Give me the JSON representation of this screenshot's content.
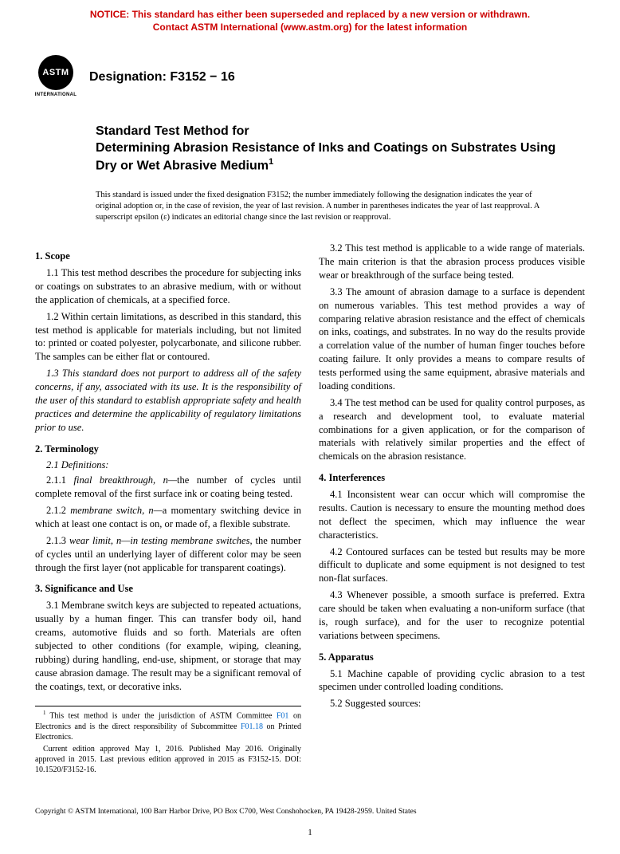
{
  "notice": {
    "line1": "NOTICE: This standard has either been superseded and replaced by a new version or withdrawn.",
    "line2": "Contact ASTM International (www.astm.org) for the latest information",
    "color": "#cc0000"
  },
  "logo": {
    "acronym": "ASTM",
    "subtext": "INTERNATIONAL"
  },
  "designation": {
    "label": "Designation: F3152 − 16"
  },
  "title": {
    "prefix": "Standard Test Method for",
    "main": "Determining Abrasion Resistance of Inks and Coatings on Substrates Using Dry or Wet Abrasive Medium",
    "superscript": "1"
  },
  "issuance_note": "This standard is issued under the fixed designation F3152; the number immediately following the designation indicates the year of original adoption or, in the case of revision, the year of last revision. A number in parentheses indicates the year of last reapproval. A superscript epsilon (ε) indicates an editorial change since the last revision or reapproval.",
  "sections": {
    "s1": {
      "head": "1. Scope",
      "p1": "1.1 This test method describes the procedure for subjecting inks or coatings on substrates to an abrasive medium, with or without the application of chemicals, at a specified force.",
      "p2": "1.2 Within certain limitations, as described in this standard, this test method is applicable for materials including, but not limited to: printed or coated polyester, polycarbonate, and silicone rubber. The samples can be either flat or contoured.",
      "p3": "1.3 This standard does not purport to address all of the safety concerns, if any, associated with its use. It is the responsibility of the user of this standard to establish appropriate safety and health practices and determine the applicability of regulatory limitations prior to use."
    },
    "s2": {
      "head": "2. Terminology",
      "sub": "2.1 Definitions:",
      "p1a": "2.1.1 ",
      "p1term": "final breakthrough, n—",
      "p1b": "the number of cycles until complete removal of the first surface ink or coating being tested.",
      "p2a": "2.1.2 ",
      "p2term": "membrane switch, n—",
      "p2b": "a momentary switching device in which at least one contact is on, or made of, a flexible substrate.",
      "p3a": "2.1.3 ",
      "p3term": "wear limit, n—in testing membrane switches",
      "p3b": ", the number of cycles until an underlying layer of different color may be seen through the first layer (not applicable for transparent coatings)."
    },
    "s3": {
      "head": "3. Significance and Use",
      "p1": "3.1 Membrane switch keys are subjected to repeated actuations, usually by a human finger. This can transfer body oil, hand creams, automotive fluids and so forth. Materials are often subjected to other conditions (for example, wiping, cleaning, rubbing) during handling, end-use, shipment, or storage that may cause abrasion damage. The result may be a significant removal of the coatings, text, or decorative inks.",
      "p2": "3.2 This test method is applicable to a wide range of materials. The main criterion is that the abrasion process produces visible wear or breakthrough of the surface being tested.",
      "p3": "3.3 The amount of abrasion damage to a surface is dependent on numerous variables. This test method provides a way of comparing relative abrasion resistance and the effect of chemicals on inks, coatings, and substrates. In no way do the results provide a correlation value of the number of human finger touches before coating failure. It only provides a means to compare results of tests performed using the same equipment, abrasive materials and loading conditions.",
      "p4": "3.4 The test method can be used for quality control purposes, as a research and development tool, to evaluate material combinations for a given application, or for the comparison of materials with relatively similar properties and the effect of chemicals on the abrasion resistance."
    },
    "s4": {
      "head": "4. Interferences",
      "p1": "4.1 Inconsistent wear can occur which will compromise the results. Caution is necessary to ensure the mounting method does not deflect the specimen, which may influence the wear characteristics.",
      "p2": "4.2 Contoured surfaces can be tested but results may be more difficult to duplicate and some equipment is not designed to test non-flat surfaces.",
      "p3": "4.3 Whenever possible, a smooth surface is preferred. Extra care should be taken when evaluating a non-uniform surface (that is, rough surface), and for the user to recognize potential variations between specimens."
    },
    "s5": {
      "head": "5. Apparatus",
      "p1": "5.1 Machine capable of providing cyclic abrasion to a test specimen under controlled loading conditions.",
      "p2": "5.2 Suggested sources:"
    }
  },
  "footnote": {
    "p1a": "This test method is under the jurisdiction of ASTM Committee ",
    "p1link1": "F01",
    "p1b": " on Electronics and is the direct responsibility of Subcommittee ",
    "p1link2": "F01.18",
    "p1c": " on Printed Electronics.",
    "p2": "Current edition approved May 1, 2016. Published May 2016. Originally approved in 2015. Last previous edition approved in 2015 as F3152-15. DOI: 10.1520/F3152-16."
  },
  "footer": {
    "copyright": "Copyright © ASTM International, 100 Barr Harbor Drive, PO Box C700, West Conshohocken, PA 19428-2959. United States",
    "page": "1"
  },
  "colors": {
    "notice": "#cc0000",
    "link": "#0066cc",
    "text": "#000000",
    "background": "#ffffff"
  },
  "typography": {
    "body_family": "Times New Roman",
    "heading_family": "Arial",
    "body_size_pt": 10,
    "heading_size_pt": 12,
    "notice_size_pt": 9
  }
}
